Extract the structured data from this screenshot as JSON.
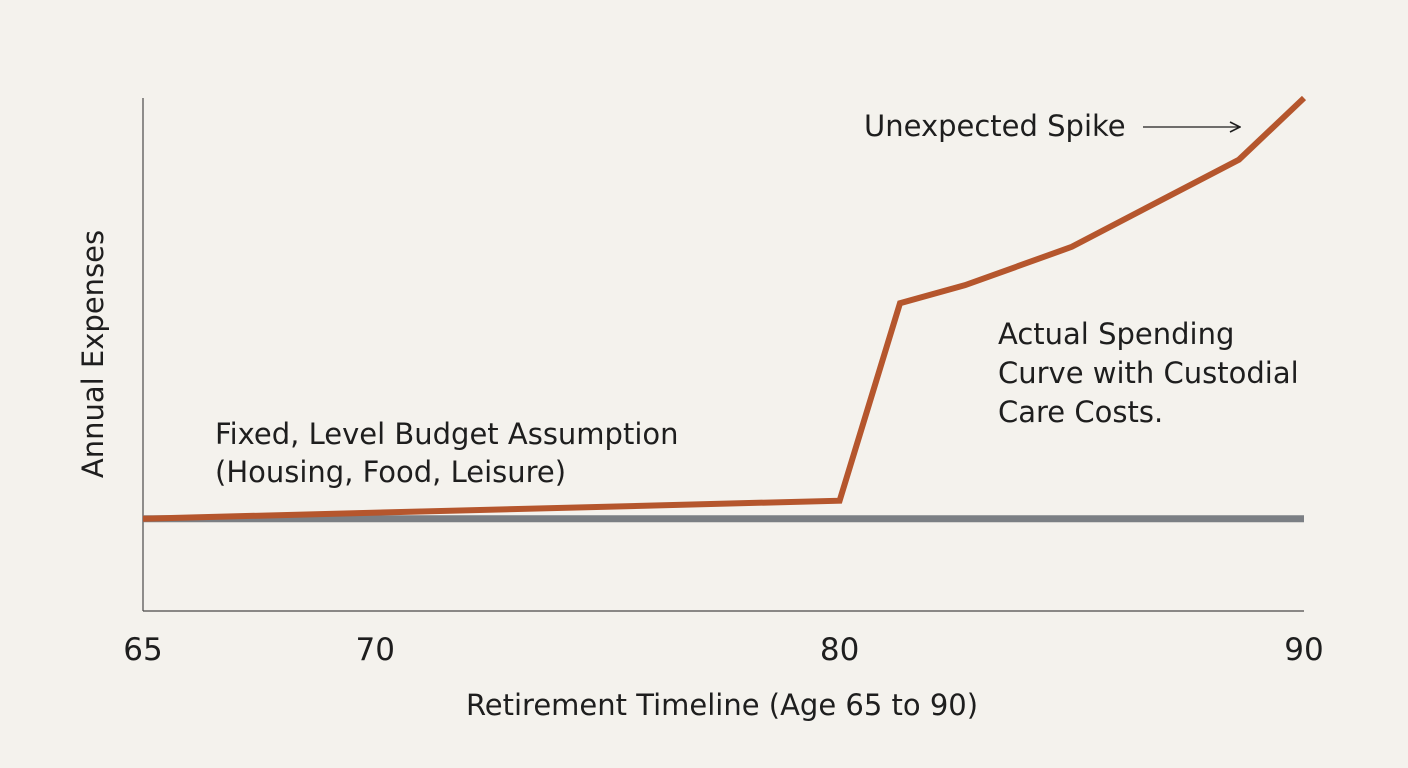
{
  "chart_data": {
    "type": "line",
    "title": "",
    "xlabel": "Retirement Timeline (Age 65 to 90)",
    "ylabel": "Annual Expenses",
    "xlim": [
      65,
      90
    ],
    "ylim": [
      0,
      100
    ],
    "x_ticks": [
      65,
      70,
      80,
      90
    ],
    "x_tick_labels": [
      "65",
      "70",
      "80",
      "90"
    ],
    "grid": false,
    "legend": "none",
    "series": [
      {
        "key": "fixed",
        "color": "#7b7f84",
        "x": [
          65,
          90
        ],
        "y": [
          18,
          18
        ]
      },
      {
        "key": "actual",
        "color": "#b5562d",
        "x": [
          65,
          80,
          81.3,
          82.7,
          85,
          88.6,
          90
        ],
        "y": [
          18,
          21.5,
          60,
          63.5,
          71,
          88,
          100
        ]
      }
    ],
    "annotations": [
      {
        "key": "fixed",
        "lines": [
          "Fixed, Level Budget Assumption",
          "(Housing, Food, Leisure)"
        ]
      },
      {
        "key": "actual",
        "lines": [
          "Actual Spending",
          "Curve with Custodial",
          "Care Costs."
        ]
      },
      {
        "key": "spike",
        "lines": [
          "Unexpected Spike"
        ]
      }
    ]
  }
}
